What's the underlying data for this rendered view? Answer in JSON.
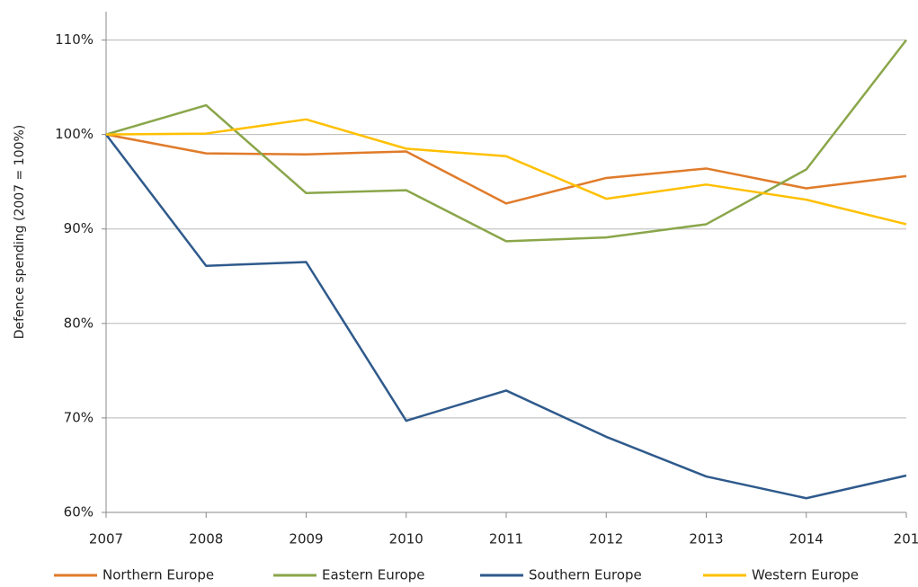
{
  "chart_data": {
    "type": "line",
    "y_label": "Defence spending (2007 = 100%)",
    "categories": [
      "2007",
      "2008",
      "2009",
      "2010",
      "2011",
      "2012",
      "2013",
      "2014",
      "201"
    ],
    "series": [
      {
        "name": "Northern Europe",
        "color": "#e07b2a",
        "values": [
          100,
          98,
          97.9,
          98.2,
          92.7,
          95.4,
          96.4,
          94.3,
          95.6
        ]
      },
      {
        "name": "Eastern Europe",
        "color": "#8aa64a",
        "values": [
          100,
          103.1,
          93.8,
          94.1,
          88.7,
          89.1,
          90.5,
          96.3,
          110
        ]
      },
      {
        "name": "Southern Europe",
        "color": "#2f5a8c",
        "values": [
          100,
          86.1,
          86.5,
          69.7,
          72.9,
          68,
          63.8,
          61.5,
          63.9
        ]
      },
      {
        "name": "Western Europe",
        "color": "#ffc000",
        "values": [
          100,
          100.1,
          101.6,
          98.5,
          97.7,
          93.2,
          94.7,
          93.1,
          90.5
        ]
      }
    ],
    "ylim": [
      60,
      113
    ],
    "yticks": [
      {
        "value": 60,
        "label": "60%"
      },
      {
        "value": 70,
        "label": "70%"
      },
      {
        "value": 80,
        "label": "80%"
      },
      {
        "value": 90,
        "label": "90%"
      },
      {
        "value": 100,
        "label": "100%"
      },
      {
        "value": 110,
        "label": "110%"
      }
    ],
    "grid": true,
    "legend": "bottom"
  }
}
